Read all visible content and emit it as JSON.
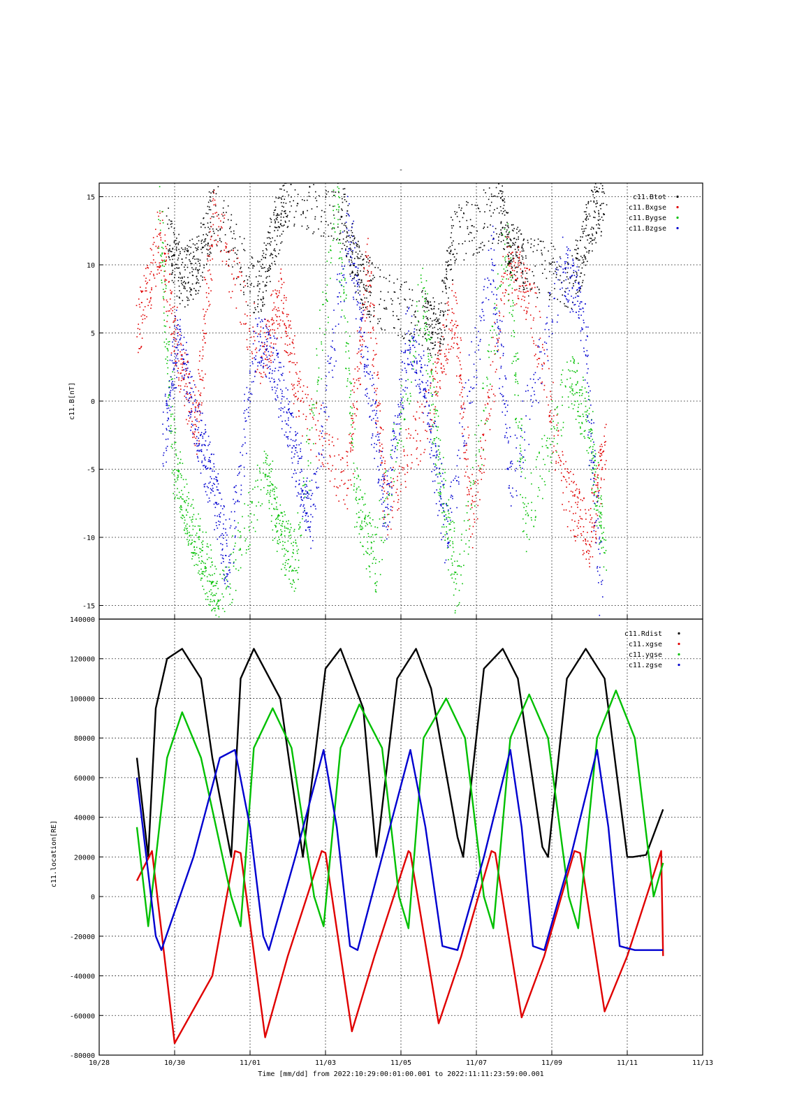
{
  "figure": {
    "title_mark": "-",
    "time_label": "Time [mm/dd]  from 2022:10:29:00:01:00.001  to  2022:11:11:23:59:00.001"
  },
  "chart_data": [
    {
      "type": "scatter",
      "ylabel": "c11.B[nT]",
      "xlabel": "",
      "ylim": [
        -16,
        16
      ],
      "xlim": [
        0,
        16
      ],
      "x_ticks": [
        "10/28",
        "10/30",
        "11/01",
        "11/03",
        "11/05",
        "11/07",
        "11/09",
        "11/11",
        "11/13"
      ],
      "y_ticks": [
        15,
        10,
        5,
        0,
        -5,
        -10,
        -15
      ],
      "grid": true,
      "legend_position": "top-right",
      "legend": [
        "c11.Btot",
        "c11.Bxgse",
        "c11.Bygse",
        "c11.Bzgse"
      ],
      "series": [
        {
          "name": "c11.Btot",
          "color": "#000000",
          "x": [
            1.8,
            2.2,
            2.6,
            3.0,
            4.2,
            4.6,
            5.0,
            6.4,
            6.8,
            7.2,
            8.6,
            9.0,
            9.4,
            10.6,
            10.9,
            11.3,
            12.6,
            13.0,
            13.4
          ],
          "y": [
            12,
            9,
            10,
            14,
            8,
            12,
            15,
            14,
            10,
            8,
            6,
            5,
            12,
            14,
            11,
            10,
            9,
            13,
            15
          ]
        },
        {
          "name": "c11.Bxgse",
          "color": "#e00000",
          "x": [
            1.0,
            1.6,
            2.1,
            2.6,
            3.0,
            4.3,
            4.8,
            5.3,
            6.6,
            7.1,
            7.6,
            8.8,
            9.4,
            9.9,
            10.8,
            11.4,
            12.4,
            13.0,
            13.4
          ],
          "y": [
            5,
            12,
            3,
            -2,
            14,
            3,
            8,
            0,
            -6,
            10,
            -8,
            0,
            7,
            -9,
            10,
            8,
            -7,
            -10,
            -3
          ]
        },
        {
          "name": "c11.Bygse",
          "color": "#00c000",
          "x": [
            1.6,
            2.0,
            2.4,
            2.8,
            3.2,
            4.4,
            4.8,
            5.2,
            6.3,
            6.8,
            7.3,
            8.6,
            9.0,
            9.5,
            10.8,
            11.3,
            12.5,
            13.0,
            13.4
          ],
          "y": [
            14,
            -5,
            -9,
            -12,
            -15,
            -5,
            -10,
            -12,
            15,
            -7,
            -12,
            8,
            -5,
            -14,
            12,
            -9,
            2,
            -2,
            -12
          ]
        },
        {
          "name": "c11.Bzgse",
          "color": "#0000d0",
          "x": [
            1.7,
            2.1,
            2.6,
            3.0,
            3.4,
            4.2,
            4.7,
            5.2,
            5.6,
            6.6,
            7.1,
            7.6,
            8.2,
            8.7,
            9.2,
            10.4,
            10.9,
            12.3,
            12.8,
            13.3
          ],
          "y": [
            -3,
            5,
            -2,
            -6,
            -12,
            5,
            2,
            -4,
            -9,
            13,
            2,
            -8,
            5,
            0,
            -10,
            11,
            -6,
            10,
            7,
            -14
          ]
        }
      ]
    },
    {
      "type": "line",
      "ylabel": "c11.location[RE]",
      "xlabel": "",
      "ylim": [
        -80000,
        140000
      ],
      "xlim": [
        0,
        16
      ],
      "x_ticks": [
        "10/28",
        "10/30",
        "11/01",
        "11/03",
        "11/05",
        "11/07",
        "11/09",
        "11/11",
        "11/13"
      ],
      "y_ticks": [
        140000,
        120000,
        100000,
        80000,
        60000,
        40000,
        20000,
        0,
        -20000,
        -40000,
        -60000,
        -80000
      ],
      "grid": true,
      "legend_position": "top-right",
      "legend": [
        "c11.Rdist",
        "c11.xgse",
        "c11.ygse",
        "c11.zgse"
      ],
      "orbit_starts": [
        0.5,
        2.75,
        5.0,
        7.25,
        9.5,
        11.75,
        14.0
      ],
      "x_range": [
        1.0,
        14.95
      ],
      "series": [
        {
          "name": "c11.Rdist",
          "color": "#000000",
          "x": [
            1.0,
            1.3,
            1.5,
            1.8,
            2.2,
            2.7,
            3.0,
            3.5,
            3.75,
            4.1,
            4.8,
            5.1,
            5.4,
            6.0,
            6.4,
            7.0,
            7.35,
            7.9,
            8.4,
            8.8,
            9.5,
            9.65,
            10.2,
            10.7,
            11.1,
            11.75,
            11.9,
            12.4,
            12.9,
            13.4,
            14.0,
            14.15,
            14.5,
            14.95
          ],
          "y": [
            70000,
            20000,
            95000,
            120000,
            125000,
            110000,
            70000,
            20000,
            110000,
            125000,
            100000,
            60000,
            20000,
            115000,
            125000,
            95000,
            20000,
            110000,
            125000,
            105000,
            30000,
            20000,
            115000,
            125000,
            110000,
            25000,
            20000,
            110000,
            125000,
            110000,
            20000,
            20000,
            21000,
            44000
          ]
        },
        {
          "name": "c11.xgse",
          "color": "#e00000",
          "x": [
            1.0,
            1.4,
            2.0,
            3.0,
            3.6,
            3.75,
            4.4,
            5.0,
            5.9,
            6.0,
            6.7,
            7.3,
            8.2,
            8.25,
            9.0,
            9.6,
            10.4,
            10.5,
            11.2,
            11.8,
            12.6,
            12.75,
            13.4,
            14.0,
            14.9,
            14.95
          ],
          "y": [
            8000,
            23000,
            -74000,
            -40000,
            23000,
            22000,
            -71000,
            -30000,
            23000,
            22000,
            -68000,
            -30000,
            23000,
            22000,
            -64000,
            -30000,
            23000,
            22000,
            -61000,
            -30000,
            23000,
            22000,
            -58000,
            -30000,
            23000,
            -30000
          ]
        },
        {
          "name": "c11.ygse",
          "color": "#00c000",
          "x": [
            1.0,
            1.3,
            1.8,
            2.2,
            2.7,
            3.5,
            3.75,
            4.1,
            4.6,
            5.1,
            5.7,
            5.95,
            6.4,
            6.9,
            7.5,
            7.95,
            8.2,
            8.6,
            9.2,
            9.7,
            10.2,
            10.45,
            10.9,
            11.4,
            11.9,
            12.45,
            12.7,
            13.2,
            13.7,
            14.2,
            14.7,
            14.95
          ],
          "y": [
            35000,
            -15000,
            70000,
            93000,
            70000,
            0,
            -15000,
            75000,
            95000,
            75000,
            0,
            -15000,
            75000,
            97000,
            75000,
            0,
            -16000,
            80000,
            100000,
            80000,
            0,
            -16000,
            80000,
            102000,
            80000,
            0,
            -16000,
            80000,
            104000,
            80000,
            0,
            17000
          ]
        },
        {
          "name": "c11.zgse",
          "color": "#0000d0",
          "x": [
            1.0,
            1.5,
            1.65,
            2.5,
            3.2,
            3.6,
            4.0,
            4.35,
            4.5,
            5.2,
            5.95,
            6.3,
            6.65,
            6.85,
            7.5,
            8.25,
            8.65,
            9.1,
            9.5,
            10.2,
            10.9,
            11.2,
            11.5,
            11.8,
            12.5,
            13.2,
            13.5,
            13.8,
            14.2,
            14.95
          ],
          "y": [
            60000,
            -20000,
            -27000,
            20000,
            70000,
            74000,
            35000,
            -20000,
            -27000,
            20000,
            74000,
            35000,
            -25000,
            -27000,
            20000,
            74000,
            35000,
            -25000,
            -27000,
            20000,
            74000,
            35000,
            -25000,
            -27000,
            20000,
            74000,
            35000,
            -25000,
            -27000,
            -27000
          ]
        }
      ]
    }
  ]
}
